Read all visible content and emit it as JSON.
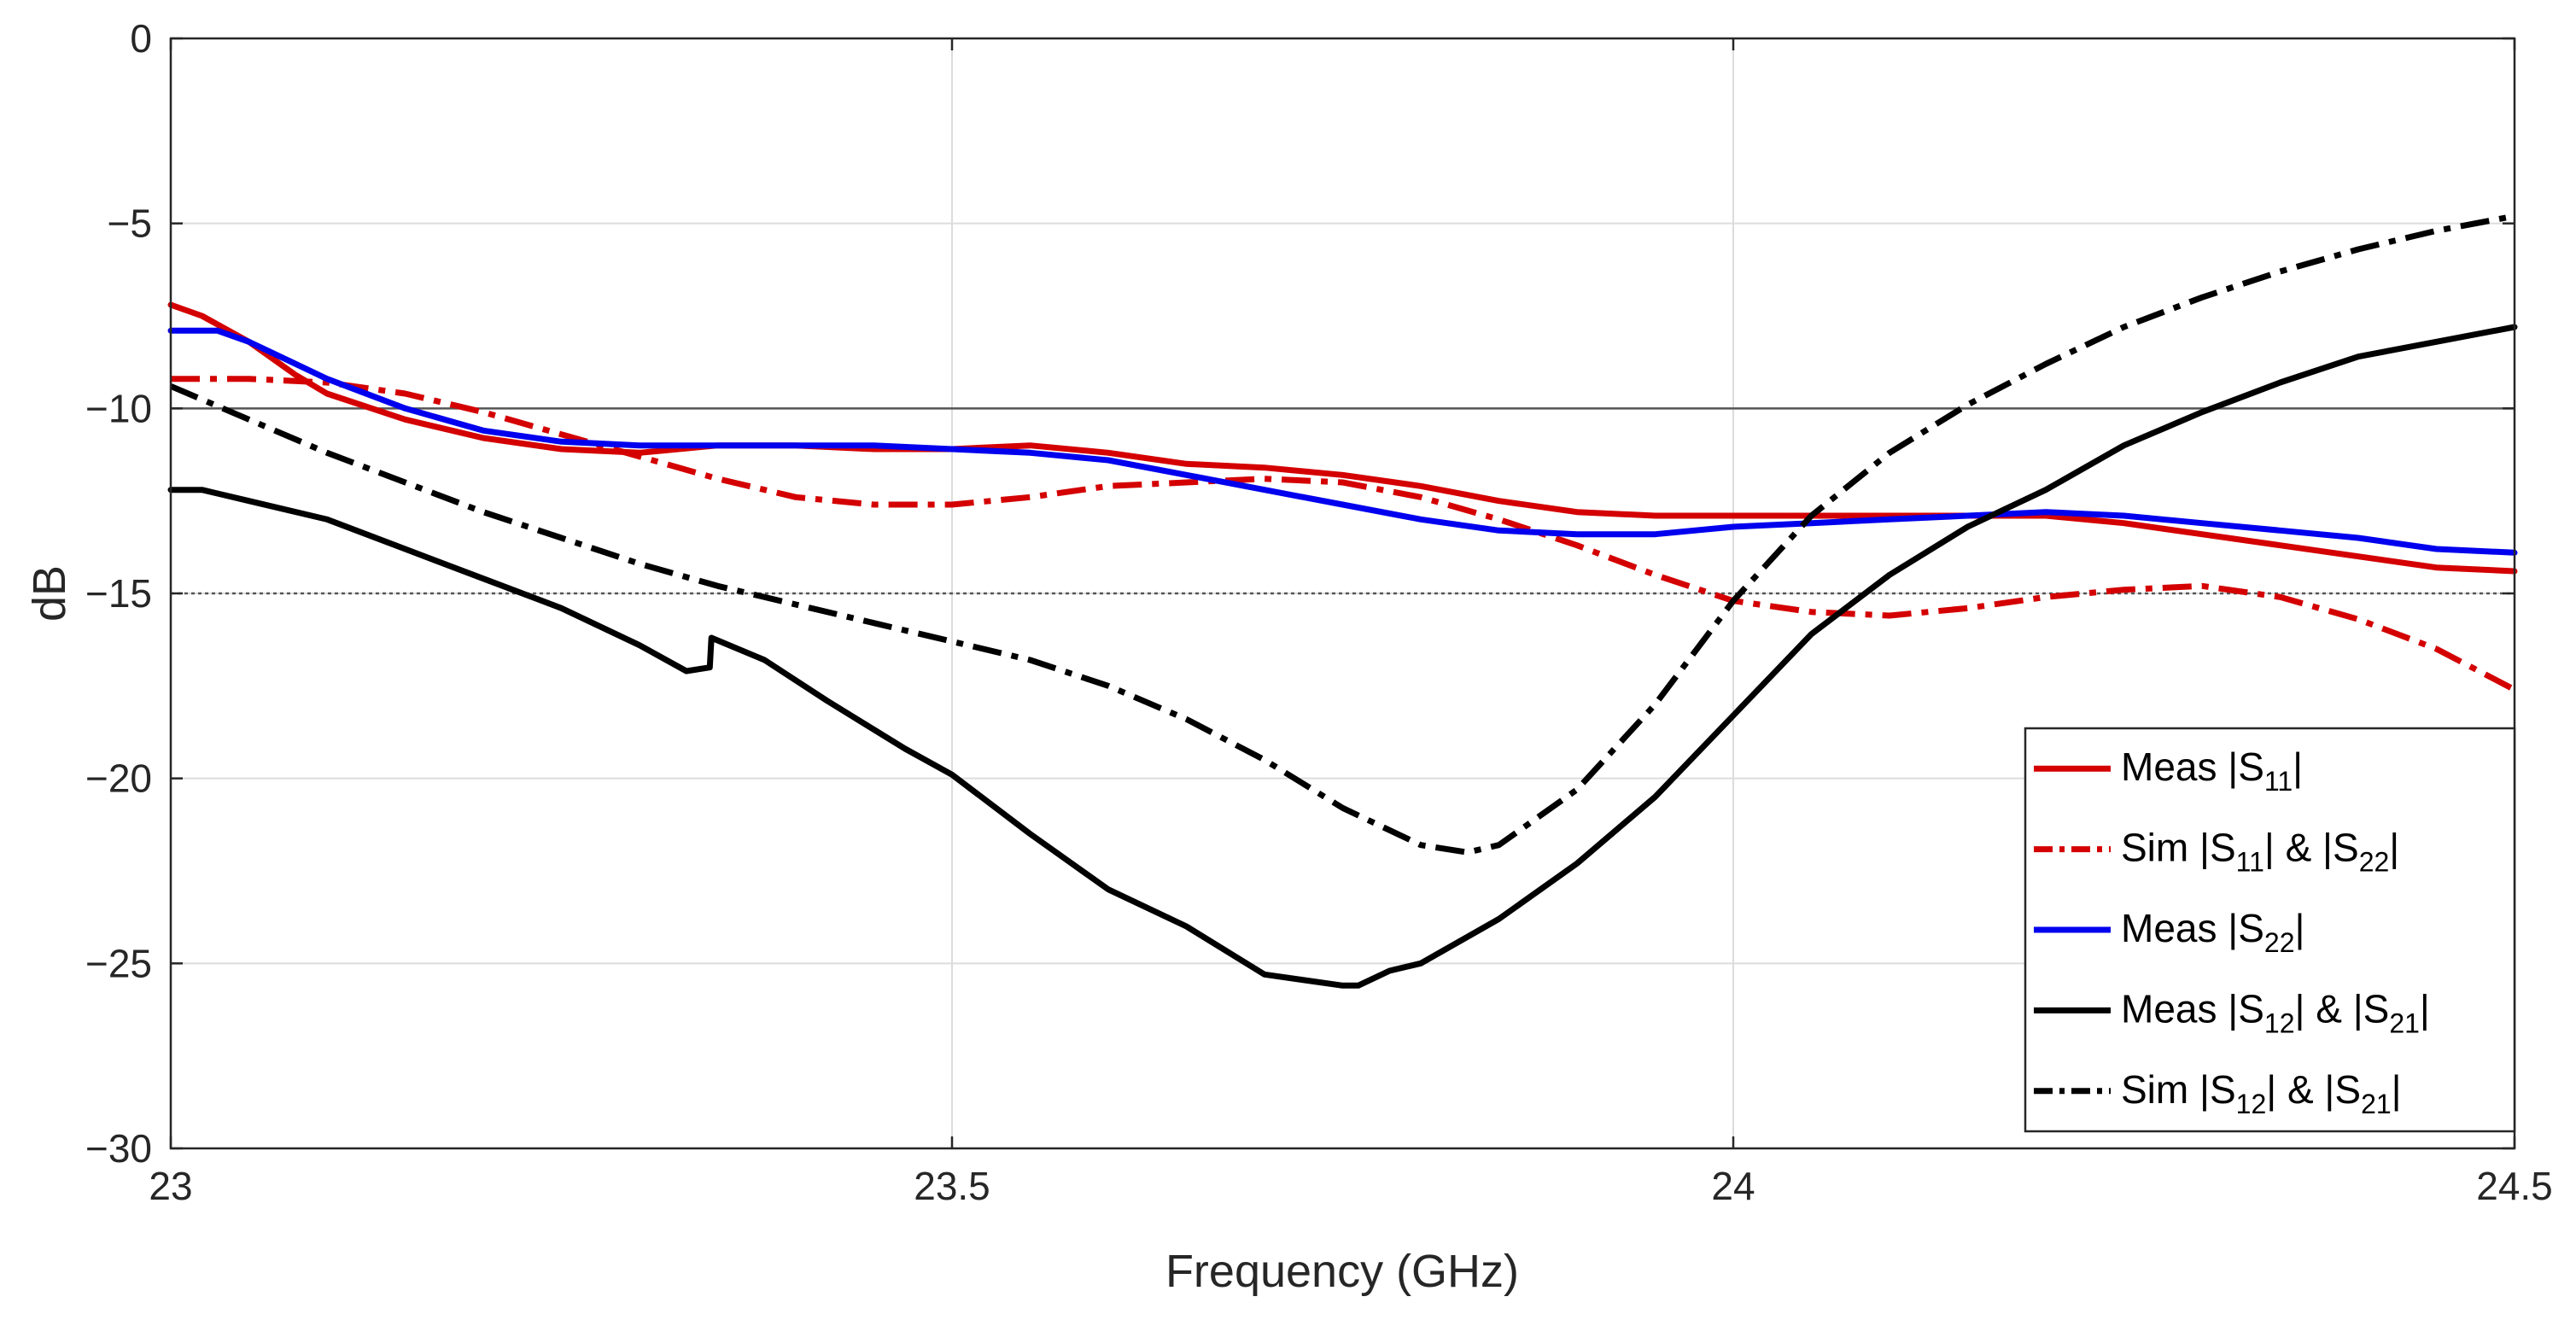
{
  "chart_data": {
    "type": "line",
    "title": "",
    "xlabel": "Frequency (GHz)",
    "ylabel": "dB",
    "xlim": [
      23,
      24.5
    ],
    "ylim": [
      -30,
      0
    ],
    "xticks": [
      23,
      23.5,
      24,
      24.5
    ],
    "xtick_labels": [
      "23",
      "23.5",
      "24",
      "24.5"
    ],
    "yticks": [
      0,
      -5,
      -10,
      -15,
      -20,
      -25,
      -30
    ],
    "ytick_labels": [
      "0",
      "−5",
      "−10",
      "−15",
      "−20",
      "−25",
      "−30"
    ],
    "grid": true,
    "legend_position": "bottom-right",
    "reference_lines": [
      {
        "y": -10,
        "color": "#555555",
        "style": "solid"
      },
      {
        "y": -15,
        "color": "#555555",
        "style": "dotted"
      }
    ],
    "series": [
      {
        "name": "Meas |S11|",
        "legend": {
          "pre": "Meas |S",
          "sub1": "11",
          "mid": "|",
          "sub2": "",
          "post": ""
        },
        "color": "#d40000",
        "style": "solid",
        "x": [
          23.0,
          23.02,
          23.05,
          23.08,
          23.1,
          23.15,
          23.2,
          23.25,
          23.3,
          23.35,
          23.4,
          23.45,
          23.5,
          23.55,
          23.6,
          23.65,
          23.7,
          23.75,
          23.8,
          23.85,
          23.9,
          23.95,
          24.0,
          24.05,
          24.1,
          24.15,
          24.2,
          24.25,
          24.3,
          24.35,
          24.4,
          24.45,
          24.5
        ],
        "y": [
          -7.2,
          -7.5,
          -8.2,
          -9.1,
          -9.6,
          -10.3,
          -10.8,
          -11.1,
          -11.2,
          -11.0,
          -11.0,
          -11.1,
          -11.1,
          -11.0,
          -11.2,
          -11.5,
          -11.6,
          -11.8,
          -12.1,
          -12.5,
          -12.8,
          -12.9,
          -12.9,
          -12.9,
          -12.9,
          -12.9,
          -12.9,
          -13.1,
          -13.4,
          -13.7,
          -14.0,
          -14.3,
          -14.4
        ]
      },
      {
        "name": "Sim |S11| & |S22|",
        "legend": {
          "pre": "Sim |S",
          "sub1": "11",
          "mid": "| & |S",
          "sub2": "22",
          "post": "|"
        },
        "color": "#d40000",
        "style": "dashdot",
        "x": [
          23.0,
          23.05,
          23.1,
          23.15,
          23.2,
          23.25,
          23.3,
          23.35,
          23.4,
          23.45,
          23.5,
          23.55,
          23.6,
          23.65,
          23.7,
          23.75,
          23.8,
          23.85,
          23.9,
          23.95,
          24.0,
          24.05,
          24.1,
          24.15,
          24.2,
          24.25,
          24.3,
          24.35,
          24.4,
          24.45,
          24.5
        ],
        "y": [
          -9.2,
          -9.2,
          -9.3,
          -9.6,
          -10.1,
          -10.7,
          -11.3,
          -11.9,
          -12.4,
          -12.6,
          -12.6,
          -12.4,
          -12.1,
          -12.0,
          -11.9,
          -12.0,
          -12.4,
          -13.0,
          -13.7,
          -14.5,
          -15.2,
          -15.5,
          -15.6,
          -15.4,
          -15.1,
          -14.9,
          -14.8,
          -15.1,
          -15.7,
          -16.5,
          -17.6
        ]
      },
      {
        "name": "Meas |S22|",
        "legend": {
          "pre": "Meas |S",
          "sub1": "22",
          "mid": "|",
          "sub2": "",
          "post": ""
        },
        "color": "#0000ee",
        "style": "solid",
        "x": [
          23.0,
          23.03,
          23.05,
          23.08,
          23.1,
          23.15,
          23.2,
          23.25,
          23.3,
          23.35,
          23.4,
          23.45,
          23.5,
          23.55,
          23.6,
          23.65,
          23.7,
          23.75,
          23.8,
          23.85,
          23.9,
          23.95,
          24.0,
          24.05,
          24.1,
          24.15,
          24.2,
          24.25,
          24.3,
          24.35,
          24.4,
          24.45,
          24.5
        ],
        "y": [
          -7.9,
          -7.9,
          -8.2,
          -8.8,
          -9.2,
          -10.0,
          -10.6,
          -10.9,
          -11.0,
          -11.0,
          -11.0,
          -11.0,
          -11.1,
          -11.2,
          -11.4,
          -11.8,
          -12.2,
          -12.6,
          -13.0,
          -13.3,
          -13.4,
          -13.4,
          -13.2,
          -13.1,
          -13.0,
          -12.9,
          -12.8,
          -12.9,
          -13.1,
          -13.3,
          -13.5,
          -13.8,
          -13.9
        ]
      },
      {
        "name": "Meas |S12| & |S21|",
        "legend": {
          "pre": "Meas |S",
          "sub1": "12",
          "mid": "| & |S",
          "sub2": "21",
          "post": "|"
        },
        "color": "#000000",
        "style": "solid",
        "x": [
          23.0,
          23.02,
          23.05,
          23.1,
          23.15,
          23.2,
          23.25,
          23.3,
          23.33,
          23.345,
          23.346,
          23.38,
          23.42,
          23.47,
          23.5,
          23.55,
          23.6,
          23.65,
          23.7,
          23.75,
          23.76,
          23.78,
          23.8,
          23.85,
          23.9,
          23.95,
          24.0,
          24.05,
          24.1,
          24.15,
          24.2,
          24.25,
          24.3,
          24.35,
          24.4,
          24.45,
          24.5
        ],
        "y": [
          -12.2,
          -12.2,
          -12.5,
          -13.0,
          -13.8,
          -14.6,
          -15.4,
          -16.4,
          -17.1,
          -17.0,
          -16.2,
          -16.8,
          -17.9,
          -19.2,
          -19.9,
          -21.5,
          -23.0,
          -24.0,
          -25.3,
          -25.6,
          -25.6,
          -25.2,
          -25.0,
          -23.8,
          -22.3,
          -20.5,
          -18.3,
          -16.1,
          -14.5,
          -13.2,
          -12.2,
          -11.0,
          -10.1,
          -9.3,
          -8.6,
          -8.2,
          -7.8
        ]
      },
      {
        "name": "Sim |S12| & |S21|",
        "legend": {
          "pre": "Sim |S",
          "sub1": "12",
          "mid": "| & |S",
          "sub2": "21",
          "post": "|"
        },
        "color": "#000000",
        "style": "dashdot",
        "x": [
          23.0,
          23.05,
          23.1,
          23.15,
          23.2,
          23.25,
          23.3,
          23.35,
          23.4,
          23.45,
          23.5,
          23.55,
          23.6,
          23.65,
          23.7,
          23.75,
          23.8,
          23.83,
          23.85,
          23.9,
          23.95,
          24.0,
          24.05,
          24.1,
          24.15,
          24.2,
          24.25,
          24.3,
          24.35,
          24.4,
          24.45,
          24.5
        ],
        "y": [
          -9.4,
          -10.3,
          -11.2,
          -12.0,
          -12.8,
          -13.5,
          -14.2,
          -14.8,
          -15.3,
          -15.8,
          -16.3,
          -16.8,
          -17.5,
          -18.4,
          -19.5,
          -20.8,
          -21.8,
          -22.0,
          -21.8,
          -20.3,
          -18.0,
          -15.2,
          -12.9,
          -11.2,
          -9.9,
          -8.8,
          -7.8,
          -7.0,
          -6.3,
          -5.7,
          -5.2,
          -4.8
        ]
      }
    ]
  }
}
